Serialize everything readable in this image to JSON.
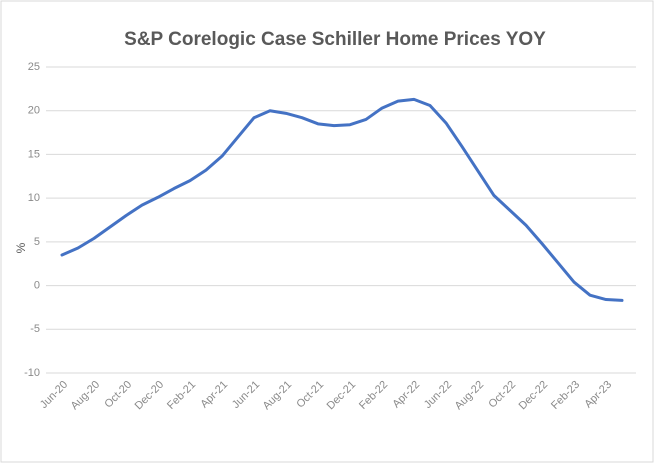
{
  "chart_data": {
    "type": "line",
    "title": "S&P Corelogic Case Schiller Home Prices YOY",
    "y_label": "%",
    "categories": [
      "Jun-20",
      null,
      "Aug-20",
      null,
      "Oct-20",
      null,
      "Dec-20",
      null,
      "Feb-21",
      null,
      "Apr-21",
      null,
      "Jun-21",
      null,
      "Aug-21",
      null,
      "Oct-21",
      null,
      "Dec-21",
      null,
      "Feb-22",
      null,
      "Apr-22",
      null,
      "Jun-22",
      null,
      "Aug-22",
      null,
      "Oct-22",
      null,
      "Dec-22",
      null,
      "Feb-23",
      null,
      "Apr-23",
      null
    ],
    "values": [
      3.5,
      4.3,
      5.4,
      6.7,
      8.0,
      9.2,
      10.1,
      11.1,
      12.0,
      13.2,
      14.8,
      17.0,
      19.2,
      20.0,
      19.7,
      19.2,
      18.5,
      18.3,
      18.4,
      19.0,
      20.3,
      21.1,
      21.3,
      20.6,
      18.6,
      15.9,
      13.1,
      10.3,
      8.6,
      6.9,
      4.8,
      2.6,
      0.4,
      -1.1,
      -1.6,
      -1.7
    ],
    "color": "#4472c4",
    "ylim": [
      -10,
      25
    ],
    "yticks": [
      -10,
      -5,
      0,
      5,
      10,
      15,
      20,
      25
    ],
    "grid": true
  }
}
